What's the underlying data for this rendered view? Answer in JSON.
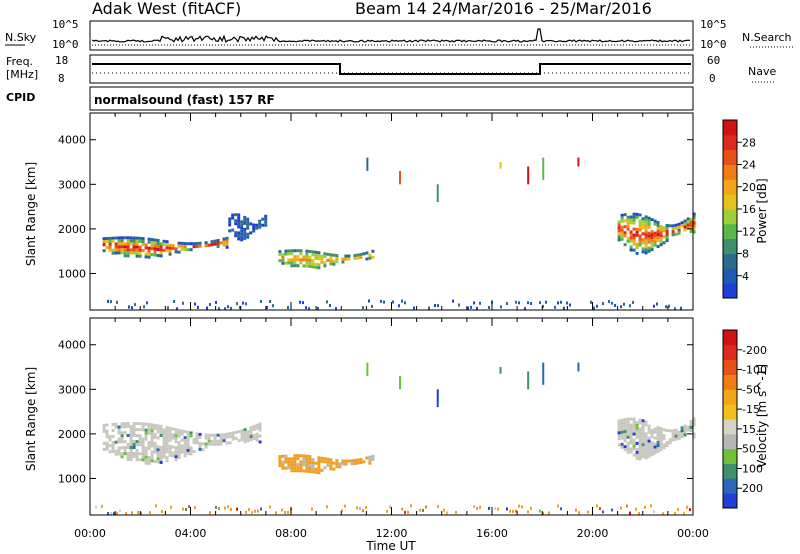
{
  "header": {
    "site": "Adak West (fitACF)",
    "beam": "Beam 14  24/Mar/2016 - 25/Mar/2016"
  },
  "top_panels": {
    "nsky_label": "N.Sky",
    "nsky_ticks": [
      "10^5",
      "10^0"
    ],
    "nsearch_label": "N.Search",
    "nsearch_ticks": [
      "10^5",
      "10^0"
    ],
    "freq_label_1": "Freq.",
    "freq_label_2": "[MHz]",
    "freq_ticks": [
      "18",
      "8"
    ],
    "nave_label": "Nave",
    "nave_ticks": [
      "60",
      "0"
    ],
    "cpid_label": "CPID",
    "cpid_text": "normalsound (fast) 157 RF"
  },
  "chart_data": [
    {
      "type": "heatmap",
      "title": "",
      "xlabel": "Time UT",
      "ylabel": "Slant Range [km]",
      "x_ticks": [
        "00:00",
        "04:00",
        "08:00",
        "12:00",
        "16:00",
        "20:00",
        "00:00"
      ],
      "xlim_hours": [
        0,
        24
      ],
      "y_ticks": [
        1000,
        2000,
        3000,
        4000
      ],
      "ylim_km": [
        180,
        4600
      ],
      "colorbar": {
        "label": "Power [dB]",
        "ticks": [
          "4",
          "8",
          "12",
          "16",
          "20",
          "24",
          "28"
        ],
        "colors": [
          "#1f3fd6",
          "#1f5bb5",
          "#2d6b8c",
          "#3e8f6a",
          "#58b84a",
          "#9ccf3a",
          "#e4c21c",
          "#f2a516",
          "#f07d14",
          "#e9511a",
          "#dd2a1f",
          "#d11212"
        ]
      },
      "regions": [
        {
          "t": [
            0.5,
            5.5
          ],
          "r": [
            1400,
            1950
          ],
          "level": "strong"
        },
        {
          "t": [
            5.5,
            7.0
          ],
          "r": [
            1800,
            2500
          ],
          "level": "weak"
        },
        {
          "t": [
            7.5,
            11.3
          ],
          "r": [
            1150,
            1650
          ],
          "level": "medium"
        },
        {
          "t": [
            21.0,
            24.0
          ],
          "r": [
            1500,
            2600
          ],
          "level": "strong"
        }
      ]
    },
    {
      "type": "heatmap",
      "title": "",
      "xlabel": "Time UT",
      "ylabel": "Slant Range [km]",
      "x_ticks": [
        "00:00",
        "04:00",
        "08:00",
        "12:00",
        "16:00",
        "20:00",
        "00:00"
      ],
      "xlim_hours": [
        0,
        24
      ],
      "y_ticks": [
        1000,
        2000,
        3000,
        4000
      ],
      "ylim_km": [
        180,
        4600
      ],
      "colorbar": {
        "label": "Velocity [m s^-1]",
        "ticks": [
          "200",
          "100",
          "50",
          "15",
          "-15",
          "-50",
          "-100",
          "-200"
        ],
        "colors": [
          "#1f3fd6",
          "#2b66b8",
          "#3e8f6a",
          "#6bc236",
          "#b7b7b7",
          "#d4d4c4",
          "#f2c01c",
          "#f2a516",
          "#f07d14",
          "#e9511a",
          "#dd2a1f",
          "#d11212"
        ]
      },
      "regions": [
        {
          "t": [
            0.5,
            6.8
          ],
          "r": [
            1400,
            2500
          ],
          "level": "ground"
        },
        {
          "t": [
            7.5,
            11.3
          ],
          "r": [
            1150,
            1650
          ],
          "level": "negative"
        },
        {
          "t": [
            21.0,
            24.0
          ],
          "r": [
            1500,
            2600
          ],
          "level": "ground"
        }
      ]
    }
  ],
  "colors": {
    "axis": "#000000",
    "ground": "#c8c8c0",
    "orange": "#f0a020"
  }
}
